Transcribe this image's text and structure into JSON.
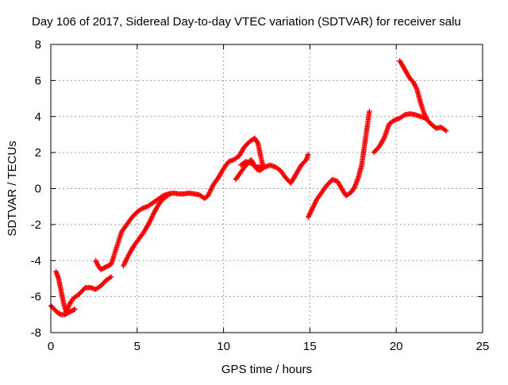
{
  "chart_data": {
    "type": "scatter",
    "title": "Day 106 of 2017, Sidereal Day-to-day VTEC variation (SDTVAR) for receiver salu",
    "xlabel": "GPS time / hours",
    "ylabel": "SDTVAR / TECUs",
    "xlim": [
      0,
      25
    ],
    "ylim": [
      -8,
      8
    ],
    "xticks": [
      0,
      5,
      10,
      15,
      20,
      25
    ],
    "yticks": [
      -8,
      -6,
      -4,
      -2,
      0,
      2,
      4,
      6,
      8
    ],
    "grid": true,
    "marker": "plus",
    "color": "#ff0000",
    "series": [
      {
        "points": [
          [
            0.0,
            -6.5
          ],
          [
            0.2,
            -6.7
          ],
          [
            0.4,
            -6.9
          ],
          [
            0.6,
            -7.0
          ],
          [
            0.8,
            -7.0
          ],
          [
            1.0,
            -6.9
          ],
          [
            1.2,
            -6.8
          ],
          [
            1.4,
            -6.7
          ]
        ]
      },
      {
        "points": [
          [
            0.3,
            -4.6
          ],
          [
            0.45,
            -5.0
          ],
          [
            0.6,
            -5.7
          ],
          [
            0.75,
            -6.4
          ],
          [
            0.9,
            -6.9
          ]
        ]
      },
      {
        "points": [
          [
            0.9,
            -6.8
          ],
          [
            1.1,
            -6.4
          ],
          [
            1.3,
            -6.1
          ],
          [
            1.6,
            -5.9
          ],
          [
            2.0,
            -5.5
          ],
          [
            2.3,
            -5.5
          ],
          [
            2.6,
            -5.6
          ],
          [
            2.9,
            -5.4
          ],
          [
            3.2,
            -5.1
          ],
          [
            3.5,
            -4.9
          ]
        ]
      },
      {
        "points": [
          [
            2.6,
            -4.0
          ],
          [
            2.75,
            -4.3
          ],
          [
            2.9,
            -4.5
          ],
          [
            3.1,
            -4.4
          ],
          [
            3.3,
            -4.3
          ],
          [
            3.5,
            -4.2
          ],
          [
            3.7,
            -3.6
          ],
          [
            3.9,
            -3.0
          ],
          [
            4.1,
            -2.4
          ],
          [
            4.4,
            -2.0
          ],
          [
            4.7,
            -1.6
          ],
          [
            5.0,
            -1.3
          ],
          [
            5.3,
            -1.1
          ],
          [
            5.6,
            -1.0
          ],
          [
            5.9,
            -0.8
          ],
          [
            6.2,
            -0.6
          ],
          [
            6.5,
            -0.4
          ],
          [
            6.8,
            -0.3
          ],
          [
            7.1,
            -0.25
          ],
          [
            7.4,
            -0.3
          ],
          [
            7.7,
            -0.3
          ],
          [
            8.0,
            -0.25
          ],
          [
            8.3,
            -0.3
          ],
          [
            8.6,
            -0.35
          ],
          [
            8.9,
            -0.55
          ],
          [
            9.1,
            -0.4
          ]
        ]
      },
      {
        "points": [
          [
            4.2,
            -4.3
          ],
          [
            4.5,
            -3.7
          ],
          [
            4.8,
            -3.2
          ],
          [
            5.1,
            -2.8
          ],
          [
            5.4,
            -2.4
          ],
          [
            5.7,
            -1.9
          ],
          [
            6.0,
            -1.3
          ],
          [
            6.3,
            -0.8
          ],
          [
            6.6,
            -0.5
          ],
          [
            6.9,
            -0.3
          ]
        ]
      },
      {
        "points": [
          [
            9.1,
            -0.4
          ],
          [
            9.4,
            0.2
          ],
          [
            9.7,
            0.6
          ],
          [
            10.0,
            1.1
          ],
          [
            10.3,
            1.5
          ],
          [
            10.6,
            1.6
          ],
          [
            10.9,
            1.8
          ],
          [
            11.2,
            2.3
          ],
          [
            11.5,
            2.6
          ],
          [
            11.8,
            2.8
          ],
          [
            12.0,
            2.5
          ],
          [
            12.15,
            1.8
          ],
          [
            12.3,
            1.2
          ]
        ]
      },
      {
        "points": [
          [
            10.7,
            0.5
          ],
          [
            11.0,
            0.9
          ],
          [
            11.3,
            1.3
          ],
          [
            11.6,
            1.6
          ],
          [
            11.9,
            1.1
          ],
          [
            12.1,
            1.0
          ],
          [
            12.4,
            1.2
          ],
          [
            12.7,
            1.3
          ],
          [
            13.0,
            1.2
          ],
          [
            13.3,
            1.0
          ],
          [
            13.6,
            0.6
          ],
          [
            13.9,
            0.3
          ],
          [
            14.2,
            0.8
          ],
          [
            14.5,
            1.3
          ],
          [
            14.8,
            1.6
          ],
          [
            14.9,
            1.9
          ]
        ]
      },
      {
        "points": [
          [
            11.0,
            1.3
          ],
          [
            11.3,
            1.5
          ],
          [
            11.6,
            1.4
          ],
          [
            11.9,
            1.2
          ],
          [
            12.2,
            1.2
          ]
        ]
      },
      {
        "points": [
          [
            14.9,
            -1.6
          ],
          [
            15.1,
            -1.2
          ],
          [
            15.4,
            -0.6
          ],
          [
            15.7,
            -0.2
          ],
          [
            16.0,
            0.2
          ],
          [
            16.3,
            0.5
          ],
          [
            16.6,
            0.4
          ],
          [
            16.9,
            -0.1
          ],
          [
            17.1,
            -0.4
          ],
          [
            17.4,
            -0.2
          ],
          [
            17.6,
            0.1
          ],
          [
            17.8,
            0.6
          ],
          [
            18.0,
            1.3
          ],
          [
            18.15,
            2.3
          ],
          [
            18.3,
            3.3
          ],
          [
            18.45,
            4.3
          ]
        ]
      },
      {
        "points": [
          [
            18.7,
            2.0
          ],
          [
            19.0,
            2.3
          ],
          [
            19.3,
            2.8
          ],
          [
            19.6,
            3.6
          ],
          [
            19.9,
            3.8
          ],
          [
            20.2,
            3.9
          ],
          [
            20.5,
            4.1
          ],
          [
            20.8,
            4.15
          ],
          [
            21.1,
            4.1
          ],
          [
            21.4,
            4.0
          ],
          [
            21.7,
            3.9
          ],
          [
            22.0,
            3.6
          ],
          [
            22.3,
            3.35
          ],
          [
            22.6,
            3.4
          ],
          [
            22.9,
            3.2
          ]
        ]
      },
      {
        "points": [
          [
            20.2,
            7.1
          ],
          [
            20.5,
            6.6
          ],
          [
            20.8,
            6.1
          ],
          [
            21.0,
            5.9
          ],
          [
            21.2,
            5.5
          ],
          [
            21.4,
            4.8
          ],
          [
            21.6,
            4.2
          ],
          [
            21.8,
            3.8
          ]
        ]
      }
    ]
  }
}
